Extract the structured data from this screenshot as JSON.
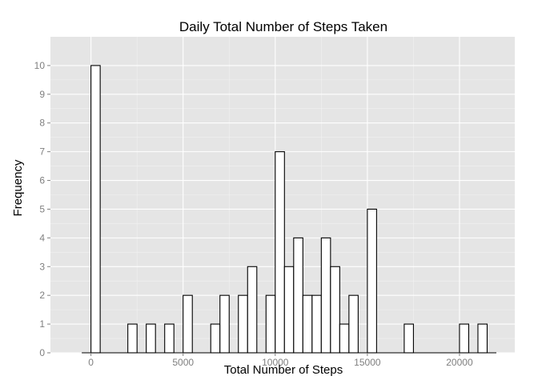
{
  "chart_data": {
    "type": "bar",
    "title": "Daily Total Number of Steps Taken",
    "xlabel": "Total Number of Steps",
    "ylabel": "Frequency",
    "xlim": [
      -2200,
      23000
    ],
    "ylim": [
      0,
      11
    ],
    "x_ticks": [
      0,
      5000,
      10000,
      15000,
      20000
    ],
    "y_ticks": [
      0,
      1,
      2,
      3,
      4,
      5,
      6,
      7,
      8,
      9,
      10
    ],
    "bin_width": 500,
    "baseline_range": [
      -500,
      22000
    ],
    "grid": true,
    "bins": [
      {
        "start": 0,
        "end": 500,
        "count": 10
      },
      {
        "start": 2000,
        "end": 2500,
        "count": 1
      },
      {
        "start": 3000,
        "end": 3500,
        "count": 1
      },
      {
        "start": 4000,
        "end": 4500,
        "count": 1
      },
      {
        "start": 5000,
        "end": 5500,
        "count": 2
      },
      {
        "start": 6500,
        "end": 7000,
        "count": 1
      },
      {
        "start": 7000,
        "end": 7500,
        "count": 2
      },
      {
        "start": 8000,
        "end": 8500,
        "count": 2
      },
      {
        "start": 8500,
        "end": 9000,
        "count": 3
      },
      {
        "start": 9500,
        "end": 10000,
        "count": 2
      },
      {
        "start": 10000,
        "end": 10500,
        "count": 7
      },
      {
        "start": 10500,
        "end": 11000,
        "count": 3
      },
      {
        "start": 11000,
        "end": 11500,
        "count": 4
      },
      {
        "start": 11500,
        "end": 12000,
        "count": 2
      },
      {
        "start": 12000,
        "end": 12500,
        "count": 2
      },
      {
        "start": 12500,
        "end": 13000,
        "count": 4
      },
      {
        "start": 13000,
        "end": 13500,
        "count": 3
      },
      {
        "start": 13500,
        "end": 14000,
        "count": 1
      },
      {
        "start": 14000,
        "end": 14500,
        "count": 2
      },
      {
        "start": 15000,
        "end": 15500,
        "count": 5
      },
      {
        "start": 17000,
        "end": 17500,
        "count": 1
      },
      {
        "start": 20000,
        "end": 20500,
        "count": 1
      },
      {
        "start": 21000,
        "end": 21500,
        "count": 1
      }
    ]
  }
}
